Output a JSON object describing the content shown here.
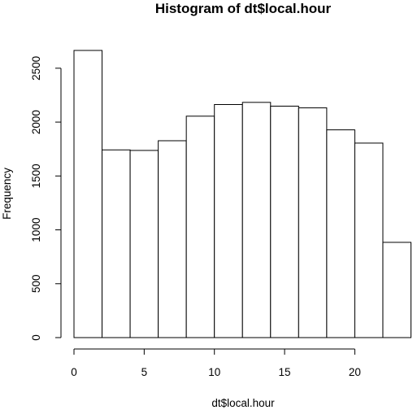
{
  "chart_data": {
    "type": "bar",
    "title": "Histogram of dt$local.hour",
    "xlabel": "dt$local.hour",
    "ylabel": "Frequency",
    "bins": [
      {
        "from": 0,
        "to": 2,
        "count": 2665
      },
      {
        "from": 2,
        "to": 4,
        "count": 1742
      },
      {
        "from": 4,
        "to": 6,
        "count": 1737
      },
      {
        "from": 6,
        "to": 8,
        "count": 1827
      },
      {
        "from": 8,
        "to": 10,
        "count": 2055
      },
      {
        "from": 10,
        "to": 12,
        "count": 2163
      },
      {
        "from": 12,
        "to": 14,
        "count": 2183
      },
      {
        "from": 14,
        "to": 16,
        "count": 2148
      },
      {
        "from": 16,
        "to": 18,
        "count": 2132
      },
      {
        "from": 18,
        "to": 20,
        "count": 1928
      },
      {
        "from": 20,
        "to": 22,
        "count": 1805
      },
      {
        "from": 22,
        "to": 24,
        "count": 884
      }
    ],
    "xlim": [
      0,
      24
    ],
    "ylim": [
      0,
      2665
    ],
    "xticks": [
      0,
      5,
      10,
      15,
      20
    ],
    "xtick_labels": [
      "0",
      "5",
      "10",
      "15",
      "20"
    ],
    "yticks": [
      0,
      500,
      1000,
      1500,
      2000,
      2500
    ],
    "ytick_labels": [
      "0",
      "500",
      "1000",
      "1500",
      "2000",
      "2500"
    ],
    "grid": false,
    "legend": "none"
  }
}
